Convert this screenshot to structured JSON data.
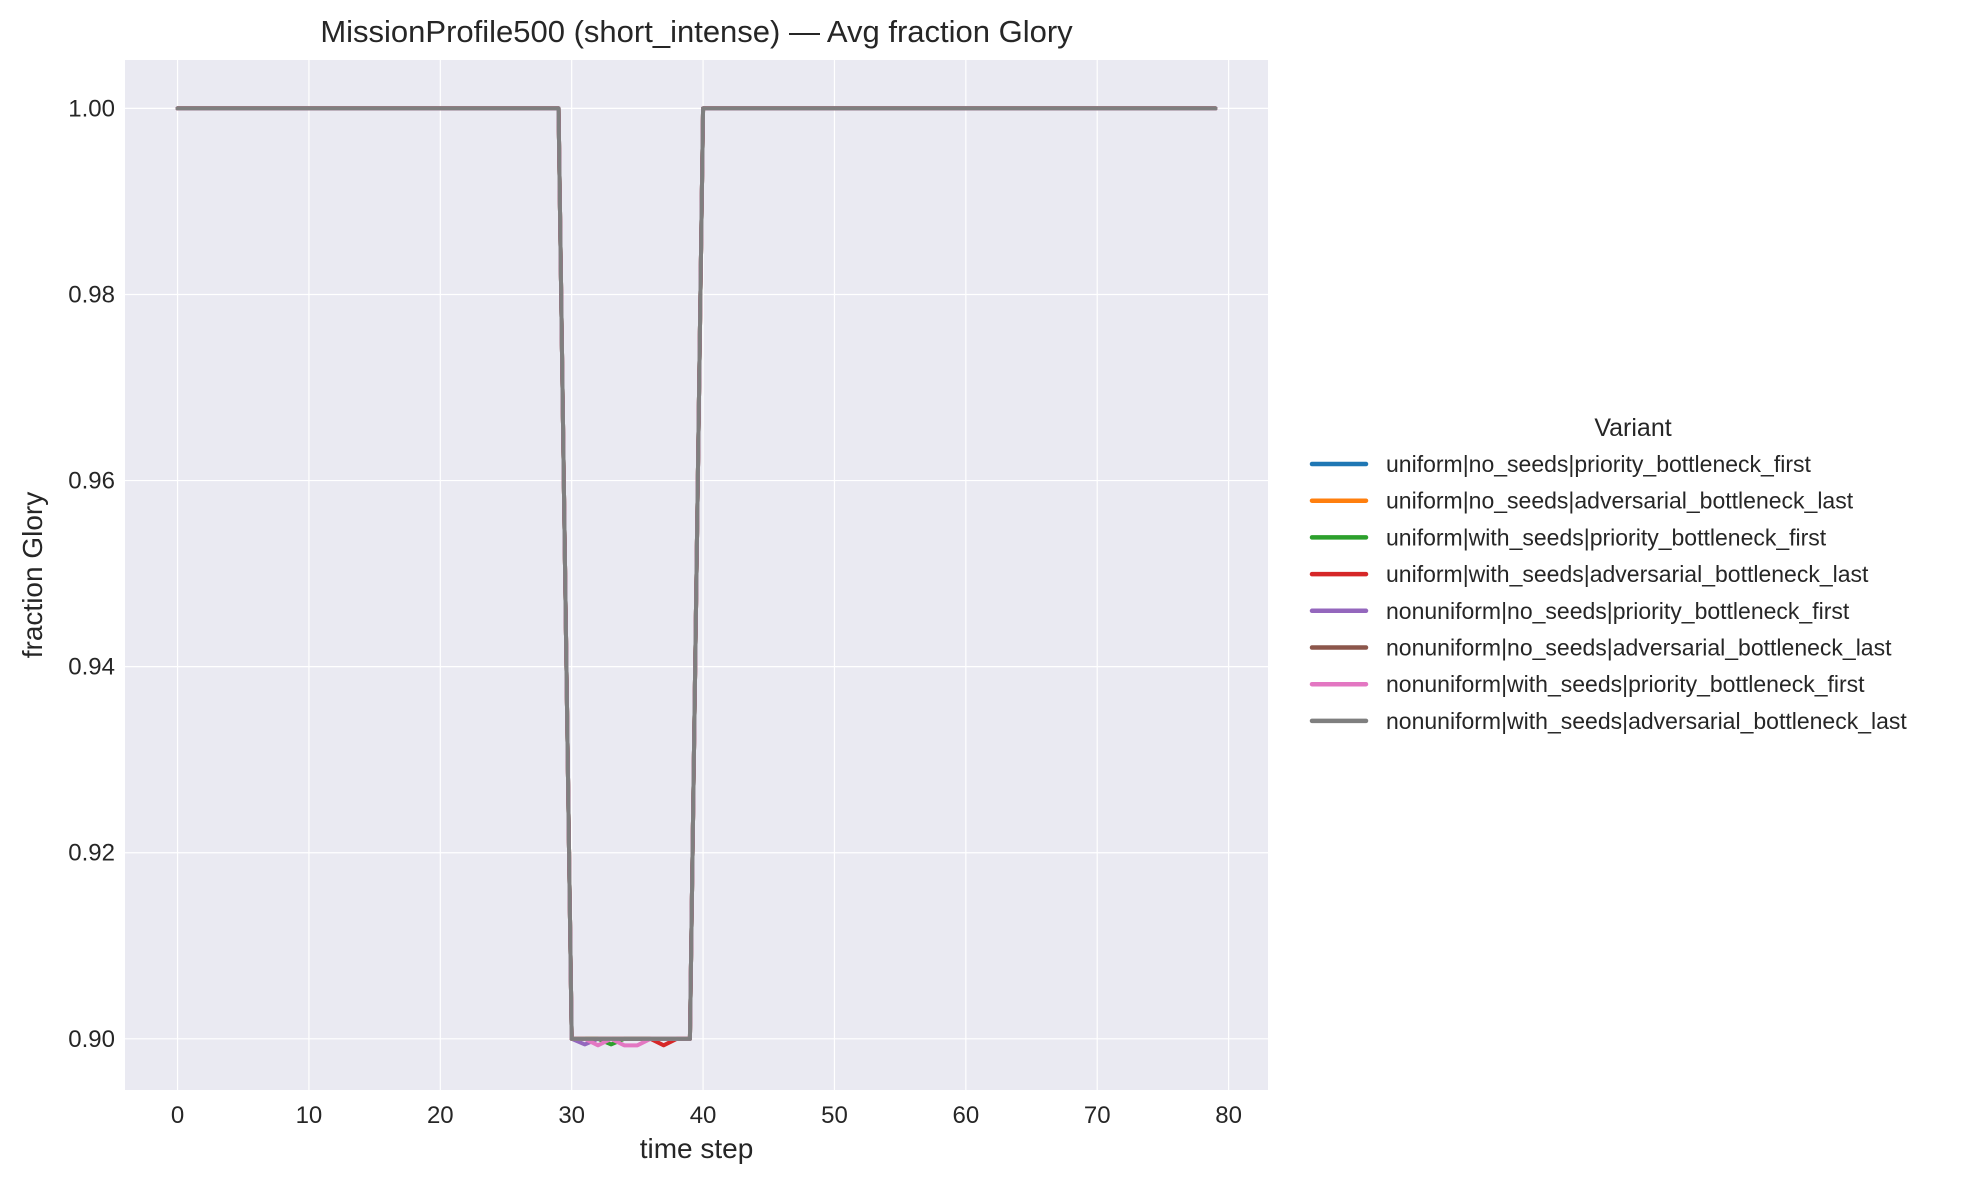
{
  "chart_data": {
    "type": "line",
    "title": "MissionProfile500 (short_intense) — Avg fraction Glory",
    "xlabel": "time step",
    "ylabel": "fraction Glory",
    "xlim": [
      -4,
      83
    ],
    "ylim": [
      0.8945,
      1.0052
    ],
    "xticks": [
      0,
      10,
      20,
      30,
      40,
      50,
      60,
      70,
      80
    ],
    "yticks": [
      0.9,
      0.92,
      0.94,
      0.96,
      0.98,
      1.0
    ],
    "ytick_labels": [
      "0.90",
      "0.92",
      "0.94",
      "0.96",
      "0.98",
      "1.00"
    ],
    "grid": true,
    "legend": {
      "title": "Variant",
      "placement": "center-right-outside"
    },
    "x": [
      0,
      29,
      30,
      31,
      32,
      33,
      34,
      35,
      36,
      37,
      38,
      39,
      40,
      79
    ],
    "series": [
      {
        "name": "uniform|no_seeds|priority_bottleneck_first",
        "color": "#1f77b4",
        "values": [
          1.0,
          1.0,
          0.9,
          0.9,
          0.9,
          0.9,
          0.9,
          0.9,
          0.9,
          0.9,
          0.9,
          0.9,
          1.0,
          1.0
        ]
      },
      {
        "name": "uniform|no_seeds|adversarial_bottleneck_last",
        "color": "#ff7f0e",
        "values": [
          1.0,
          1.0,
          0.9,
          0.9,
          0.9,
          0.9,
          0.9,
          0.9,
          0.9,
          0.9,
          0.9,
          0.9,
          1.0,
          1.0
        ]
      },
      {
        "name": "uniform|with_seeds|priority_bottleneck_first",
        "color": "#2ca02c",
        "values": [
          1.0,
          1.0,
          0.9,
          0.9,
          0.9,
          0.8994,
          0.9,
          0.9,
          0.9,
          0.9,
          0.9,
          0.9,
          1.0,
          1.0
        ]
      },
      {
        "name": "uniform|with_seeds|adversarial_bottleneck_last",
        "color": "#d62728",
        "values": [
          1.0,
          1.0,
          0.9,
          0.9,
          0.9,
          0.9,
          0.9,
          0.9,
          0.9,
          0.8993,
          0.9,
          0.9,
          1.0,
          1.0
        ]
      },
      {
        "name": "nonuniform|no_seeds|priority_bottleneck_first",
        "color": "#9467bd",
        "values": [
          1.0,
          1.0,
          0.9,
          0.8994,
          0.9,
          0.9,
          0.9,
          0.9,
          0.9,
          0.9,
          0.9,
          0.9,
          1.0,
          1.0
        ]
      },
      {
        "name": "nonuniform|no_seeds|adversarial_bottleneck_last",
        "color": "#8c564b",
        "values": [
          1.0,
          1.0,
          0.9,
          0.9,
          0.9,
          0.9,
          0.9,
          0.9,
          0.9,
          0.9,
          0.9,
          0.9,
          1.0,
          1.0
        ]
      },
      {
        "name": "nonuniform|with_seeds|priority_bottleneck_first",
        "color": "#e377c2",
        "values": [
          1.0,
          1.0,
          0.9,
          0.9,
          0.8993,
          0.9,
          0.8993,
          0.8993,
          0.9,
          0.9,
          0.9,
          0.9,
          1.0,
          1.0
        ]
      },
      {
        "name": "nonuniform|with_seeds|adversarial_bottleneck_last",
        "color": "#7f7f7f",
        "values": [
          1.0,
          1.0,
          0.9,
          0.9,
          0.9,
          0.9,
          0.9,
          0.9,
          0.9,
          0.9,
          0.9,
          0.9,
          1.0,
          1.0
        ]
      }
    ]
  }
}
